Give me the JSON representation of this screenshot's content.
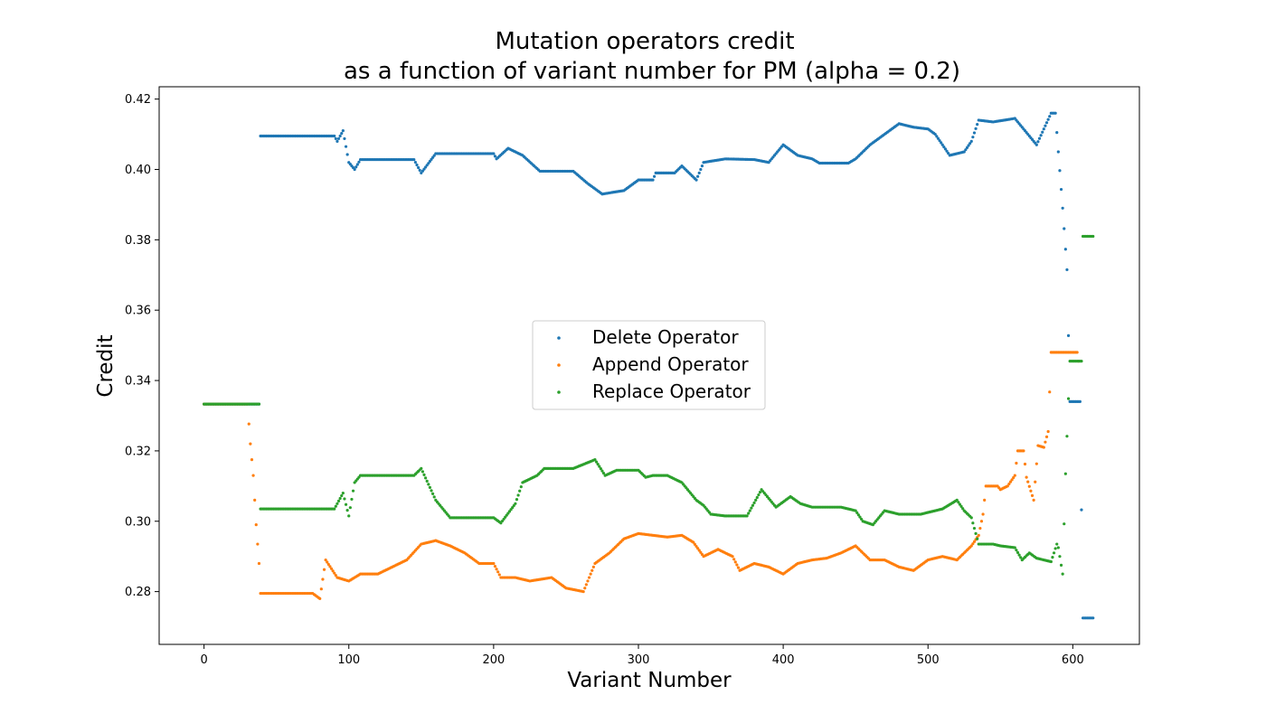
{
  "chart_data": {
    "type": "scatter",
    "title": [
      "Mutation operators credit",
      "as a function of variant number for PM (alpha = 0.2)"
    ],
    "xlabel": "Variant Number",
    "ylabel": "Credit",
    "xlim": [
      -31,
      646
    ],
    "ylim": [
      0.265,
      0.4235
    ],
    "xticks": [
      0,
      100,
      200,
      300,
      400,
      500,
      600
    ],
    "yticks": [
      0.28,
      0.3,
      0.32,
      0.34,
      0.36,
      0.38,
      0.4,
      0.42
    ],
    "ytick_labels": [
      "0.28",
      "0.30",
      "0.32",
      "0.34",
      "0.36",
      "0.38",
      "0.40",
      "0.42"
    ],
    "grid": false,
    "legend_position": "center",
    "point_count": 615,
    "series": [
      {
        "name": "Delete Operator",
        "color": "#1f77b4",
        "knots": [
          [
            0,
            0.3333
          ],
          [
            38,
            0.3333
          ],
          [
            39,
            0.4095
          ],
          [
            90,
            0.4095
          ],
          [
            92,
            0.408
          ],
          [
            96,
            0.411
          ],
          [
            100,
            0.402
          ],
          [
            104,
            0.4
          ],
          [
            108,
            0.4028
          ],
          [
            145,
            0.4028
          ],
          [
            150,
            0.399
          ],
          [
            160,
            0.4045
          ],
          [
            175,
            0.4045
          ],
          [
            200,
            0.4045
          ],
          [
            202,
            0.403
          ],
          [
            210,
            0.406
          ],
          [
            220,
            0.404
          ],
          [
            232,
            0.3995
          ],
          [
            255,
            0.3995
          ],
          [
            265,
            0.396
          ],
          [
            275,
            0.393
          ],
          [
            290,
            0.394
          ],
          [
            300,
            0.397
          ],
          [
            310,
            0.397
          ],
          [
            312,
            0.399
          ],
          [
            325,
            0.399
          ],
          [
            330,
            0.401
          ],
          [
            340,
            0.397
          ],
          [
            345,
            0.402
          ],
          [
            360,
            0.403
          ],
          [
            380,
            0.4028
          ],
          [
            390,
            0.402
          ],
          [
            400,
            0.407
          ],
          [
            410,
            0.404
          ],
          [
            420,
            0.403
          ],
          [
            425,
            0.4018
          ],
          [
            445,
            0.4018
          ],
          [
            450,
            0.403
          ],
          [
            460,
            0.407
          ],
          [
            470,
            0.41
          ],
          [
            480,
            0.413
          ],
          [
            490,
            0.412
          ],
          [
            500,
            0.4115
          ],
          [
            505,
            0.41
          ],
          [
            515,
            0.404
          ],
          [
            525,
            0.405
          ],
          [
            530,
            0.408
          ],
          [
            535,
            0.414
          ],
          [
            545,
            0.4135
          ],
          [
            560,
            0.4145
          ],
          [
            565,
            0.412
          ],
          [
            575,
            0.407
          ],
          [
            585,
            0.416
          ],
          [
            588,
            0.416
          ],
          [
            590,
            0.405
          ],
          [
            593,
            0.389
          ],
          [
            596,
            0.3715
          ],
          [
            598,
            0.334
          ],
          [
            605,
            0.334
          ],
          [
            607,
            0.2725
          ],
          [
            615,
            0.2725
          ]
        ]
      },
      {
        "name": "Append Operator",
        "color": "#ff7f0e",
        "knots": [
          [
            0,
            0.3333
          ],
          [
            30,
            0.3333
          ],
          [
            32,
            0.322
          ],
          [
            34,
            0.313
          ],
          [
            36,
            0.299
          ],
          [
            38,
            0.288
          ],
          [
            39,
            0.2795
          ],
          [
            75,
            0.2795
          ],
          [
            80,
            0.278
          ],
          [
            84,
            0.289
          ],
          [
            92,
            0.284
          ],
          [
            100,
            0.283
          ],
          [
            108,
            0.285
          ],
          [
            120,
            0.285
          ],
          [
            130,
            0.287
          ],
          [
            140,
            0.289
          ],
          [
            150,
            0.2935
          ],
          [
            160,
            0.2945
          ],
          [
            170,
            0.293
          ],
          [
            180,
            0.291
          ],
          [
            190,
            0.288
          ],
          [
            200,
            0.288
          ],
          [
            205,
            0.284
          ],
          [
            215,
            0.284
          ],
          [
            225,
            0.283
          ],
          [
            240,
            0.284
          ],
          [
            250,
            0.281
          ],
          [
            262,
            0.28
          ],
          [
            270,
            0.288
          ],
          [
            280,
            0.291
          ],
          [
            290,
            0.295
          ],
          [
            300,
            0.2965
          ],
          [
            310,
            0.296
          ],
          [
            320,
            0.2955
          ],
          [
            330,
            0.296
          ],
          [
            338,
            0.294
          ],
          [
            345,
            0.29
          ],
          [
            355,
            0.292
          ],
          [
            365,
            0.29
          ],
          [
            370,
            0.286
          ],
          [
            380,
            0.288
          ],
          [
            390,
            0.287
          ],
          [
            400,
            0.285
          ],
          [
            410,
            0.288
          ],
          [
            420,
            0.289
          ],
          [
            430,
            0.2895
          ],
          [
            440,
            0.291
          ],
          [
            450,
            0.293
          ],
          [
            460,
            0.289
          ],
          [
            470,
            0.289
          ],
          [
            480,
            0.287
          ],
          [
            490,
            0.286
          ],
          [
            500,
            0.289
          ],
          [
            510,
            0.29
          ],
          [
            520,
            0.289
          ],
          [
            530,
            0.293
          ],
          [
            535,
            0.296
          ],
          [
            538,
            0.302
          ],
          [
            540,
            0.31
          ],
          [
            548,
            0.31
          ],
          [
            550,
            0.309
          ],
          [
            555,
            0.31
          ],
          [
            560,
            0.313
          ],
          [
            562,
            0.32
          ],
          [
            566,
            0.32
          ],
          [
            568,
            0.3125
          ],
          [
            573,
            0.306
          ],
          [
            576,
            0.3215
          ],
          [
            580,
            0.321
          ],
          [
            583,
            0.3255
          ],
          [
            585,
            0.348
          ],
          [
            603,
            0.348
          ],
          [
            604,
            0.3455
          ]
        ]
      },
      {
        "name": "Replace Operator",
        "color": "#2ca02c",
        "knots": [
          [
            0,
            0.3333
          ],
          [
            38,
            0.3333
          ],
          [
            39,
            0.3035
          ],
          [
            90,
            0.3035
          ],
          [
            96,
            0.308
          ],
          [
            100,
            0.3015
          ],
          [
            104,
            0.311
          ],
          [
            108,
            0.313
          ],
          [
            145,
            0.313
          ],
          [
            150,
            0.315
          ],
          [
            160,
            0.306
          ],
          [
            170,
            0.301
          ],
          [
            172,
            0.301
          ],
          [
            200,
            0.301
          ],
          [
            205,
            0.2995
          ],
          [
            215,
            0.305
          ],
          [
            220,
            0.311
          ],
          [
            230,
            0.313
          ],
          [
            235,
            0.315
          ],
          [
            255,
            0.315
          ],
          [
            270,
            0.3175
          ],
          [
            277,
            0.313
          ],
          [
            285,
            0.3145
          ],
          [
            300,
            0.3145
          ],
          [
            305,
            0.3125
          ],
          [
            310,
            0.313
          ],
          [
            320,
            0.313
          ],
          [
            330,
            0.311
          ],
          [
            340,
            0.306
          ],
          [
            345,
            0.3045
          ],
          [
            350,
            0.302
          ],
          [
            360,
            0.3015
          ],
          [
            375,
            0.3015
          ],
          [
            385,
            0.309
          ],
          [
            395,
            0.304
          ],
          [
            405,
            0.307
          ],
          [
            412,
            0.305
          ],
          [
            420,
            0.304
          ],
          [
            440,
            0.304
          ],
          [
            450,
            0.303
          ],
          [
            455,
            0.3
          ],
          [
            462,
            0.299
          ],
          [
            470,
            0.303
          ],
          [
            480,
            0.302
          ],
          [
            495,
            0.302
          ],
          [
            510,
            0.3035
          ],
          [
            520,
            0.306
          ],
          [
            525,
            0.303
          ],
          [
            530,
            0.301
          ],
          [
            535,
            0.2935
          ],
          [
            545,
            0.2935
          ],
          [
            550,
            0.293
          ],
          [
            560,
            0.2925
          ],
          [
            565,
            0.289
          ],
          [
            570,
            0.291
          ],
          [
            575,
            0.2895
          ],
          [
            580,
            0.289
          ],
          [
            585,
            0.2885
          ],
          [
            589,
            0.2935
          ],
          [
            590,
            0.2925
          ],
          [
            593,
            0.285
          ],
          [
            595,
            0.3135
          ],
          [
            598,
            0.3455
          ],
          [
            606,
            0.3455
          ],
          [
            607,
            0.381
          ],
          [
            615,
            0.381
          ]
        ]
      }
    ]
  }
}
